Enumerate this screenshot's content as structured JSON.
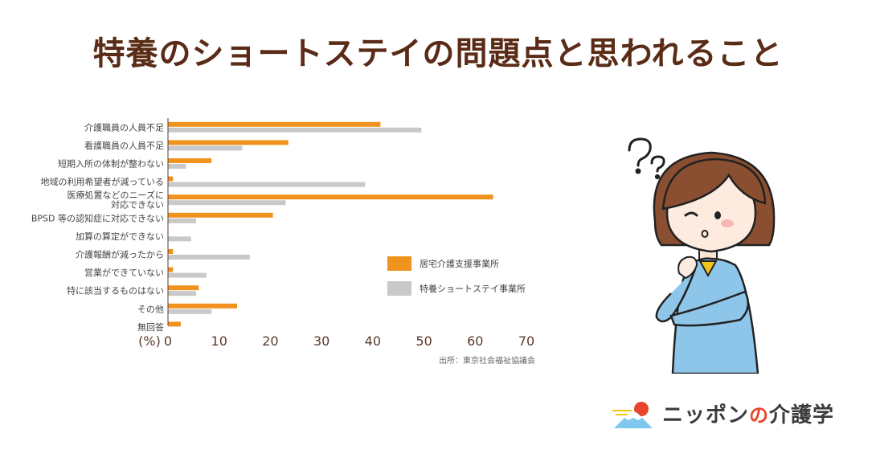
{
  "title": "特養のショートステイの問題点と思われること",
  "source": "出所：東京社会福祉協議会",
  "brand": {
    "prefix": "ニッポン",
    "particle": "の",
    "suffix": "介護学"
  },
  "colors": {
    "series1": "#F0921E",
    "series2": "#C9C9C9",
    "title": "#5A2B16",
    "axis": "#5A3A2A"
  },
  "chart_data": {
    "type": "bar",
    "orientation": "horizontal",
    "categories": [
      [
        "介護職員の人員不足"
      ],
      [
        "看護職員の人員不足"
      ],
      [
        "短期入所の体制が整わない"
      ],
      [
        "地域の利用希望者が減っている"
      ],
      [
        "医療処置などのニーズに",
        "対応できない"
      ],
      [
        "BPSD 等の認知症に対応できない"
      ],
      [
        "加算の算定ができない"
      ],
      [
        "介護報酬が減ったから"
      ],
      [
        "営業ができていない"
      ],
      [
        "特に該当するものはない"
      ],
      [
        "その他"
      ],
      [
        "無回答"
      ]
    ],
    "series": [
      {
        "name": "居宅介護支援事業所",
        "values": [
          41.5,
          23.5,
          8.5,
          1,
          63.5,
          20.5,
          0,
          1,
          1,
          6,
          13.5,
          2.5
        ]
      },
      {
        "name": "特養ショートステイ事業所",
        "values": [
          49.5,
          14.5,
          3.5,
          38.5,
          23,
          5.5,
          4.5,
          16,
          7.5,
          5.5,
          8.5,
          0
        ]
      }
    ],
    "xlim": [
      0,
      70
    ],
    "xticks": [
      0,
      10,
      20,
      30,
      40,
      50,
      60,
      70
    ],
    "unit_label": "(%)",
    "legend_position": "center-right"
  }
}
